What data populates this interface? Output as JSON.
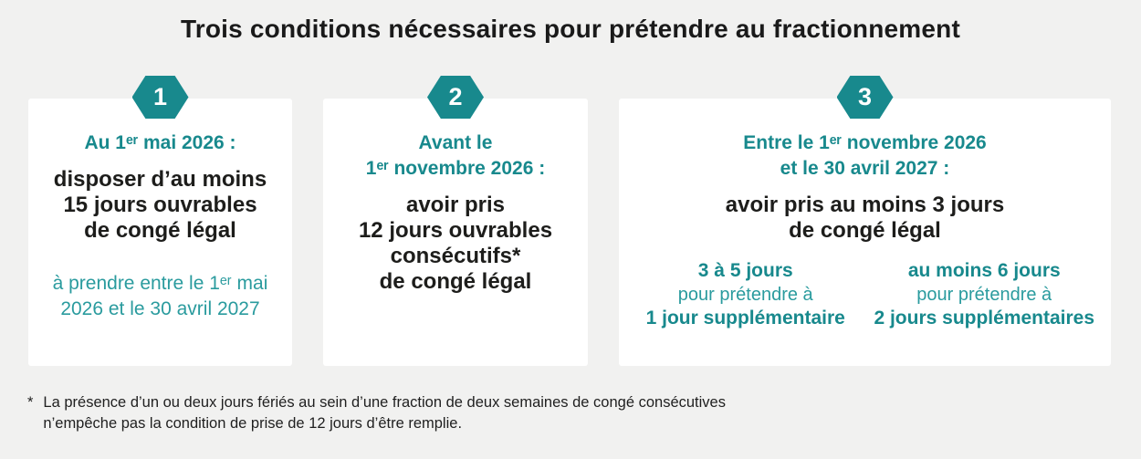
{
  "title": "Trois conditions nécessaires pour prétendre au fractionnement",
  "colors": {
    "background": "#f1f1f0",
    "card": "#ffffff",
    "teal": "#18898d",
    "teal_light": "#2a9b9e",
    "text_dark": "#1d1d1b"
  },
  "cards": [
    {
      "badge": "1",
      "header_lines": [
        "Au 1ᵉʳ mai 2026 :"
      ],
      "body_lines": [
        "disposer d’au moins",
        "15 jours ouvrables",
        "de congé légal"
      ],
      "note_lines": [
        "à prendre entre le 1ᵉʳ mai",
        "2026 et le 30 avril 2027"
      ]
    },
    {
      "badge": "2",
      "header_lines": [
        "Avant le",
        "1ᵉʳ novembre 2026 :"
      ],
      "body_lines": [
        "avoir pris",
        "12 jours ouvrables",
        "consécutifs*",
        "de congé légal"
      ]
    },
    {
      "badge": "3",
      "header_lines": [
        "Entre le 1ᵉʳ novembre 2026",
        "et le 30 avril 2027 :"
      ],
      "body_lines": [
        "avoir pris au moins 3 jours",
        "de congé légal"
      ],
      "options": [
        {
          "range": "3 à 5 jours",
          "middle": "pour prétendre à",
          "result": "1 jour supplémentaire"
        },
        {
          "range": "au moins 6 jours",
          "middle": "pour prétendre à",
          "result": "2 jours supplémentaires"
        }
      ]
    }
  ],
  "footnote": {
    "marker": "*",
    "lines": [
      "La présence d’un ou deux jours fériés au sein d’une fraction de deux semaines de congé consécutives",
      "n’empêche pas la condition de prise de 12 jours d’être remplie."
    ]
  }
}
